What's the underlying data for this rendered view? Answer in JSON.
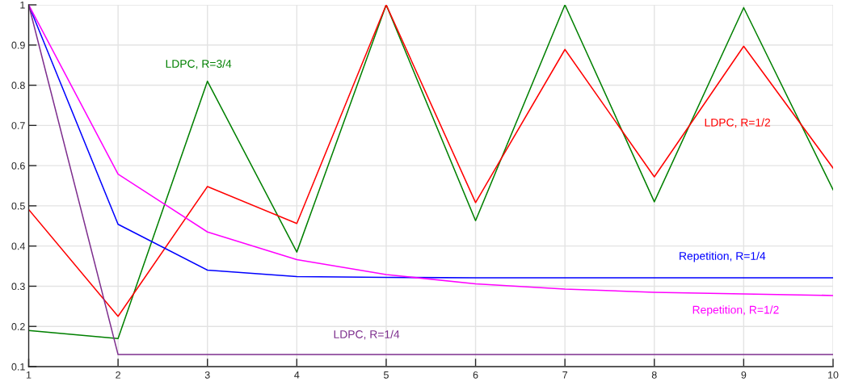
{
  "chart_data": {
    "type": "line",
    "x": [
      1,
      2,
      3,
      4,
      5,
      6,
      7,
      8,
      9,
      10
    ],
    "series": [
      {
        "name": "LDPC, R=3/4",
        "color": "#008000",
        "values": [
          0.19,
          0.17,
          0.81,
          0.385,
          1.0,
          0.463,
          1.0,
          0.51,
          0.993,
          0.54
        ]
      },
      {
        "name": "LDPC, R=1/2",
        "color": "#ff0000",
        "values": [
          0.491,
          0.225,
          0.548,
          0.456,
          1.0,
          0.508,
          0.889,
          0.572,
          0.897,
          0.594
        ]
      },
      {
        "name": "Repetition, R=1/4",
        "color": "#0000ff",
        "values": [
          1.0,
          0.454,
          0.34,
          0.324,
          0.322,
          0.321,
          0.321,
          0.321,
          0.321,
          0.321
        ]
      },
      {
        "name": "Repetition, R=1/2",
        "color": "#ff00ff",
        "values": [
          1.0,
          0.579,
          0.435,
          0.366,
          0.329,
          0.306,
          0.293,
          0.285,
          0.281,
          0.277
        ]
      },
      {
        "name": "LDPC, R=1/4",
        "color": "#7e2f8e",
        "values": [
          1.0,
          0.13,
          0.13,
          0.13,
          0.13,
          0.13,
          0.13,
          0.13,
          0.13,
          0.13
        ]
      }
    ],
    "xlim": [
      1,
      10
    ],
    "ylim": [
      0.1,
      1
    ],
    "xticks": [
      1,
      2,
      3,
      4,
      5,
      6,
      7,
      8,
      9,
      10
    ],
    "yticks": [
      0.1,
      0.2,
      0.3,
      0.4,
      0.5,
      0.6,
      0.7,
      0.8,
      0.9,
      1
    ],
    "grid": true,
    "legend": false,
    "line_style": "solid"
  }
}
